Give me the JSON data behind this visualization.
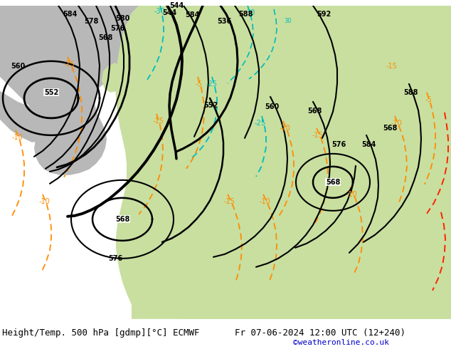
{
  "title_left": "Height/Temp. 500 hPa [gdmp][°C] ECMWF",
  "title_right": "Fr 07-06-2024 12:00 UTC (12+240)",
  "credit": "©weatheronline.co.uk",
  "bg_ocean": "#c8c8c8",
  "bg_land_green": "#c8dfa0",
  "bg_land_gray": "#b8b8b8",
  "contour_color": "#000000",
  "temp_cold_color": "#00bbbb",
  "temp_warm_color": "#ff8c00",
  "temp_hot_color": "#ff2200",
  "font_size_title": 9,
  "font_size_credit": 8
}
